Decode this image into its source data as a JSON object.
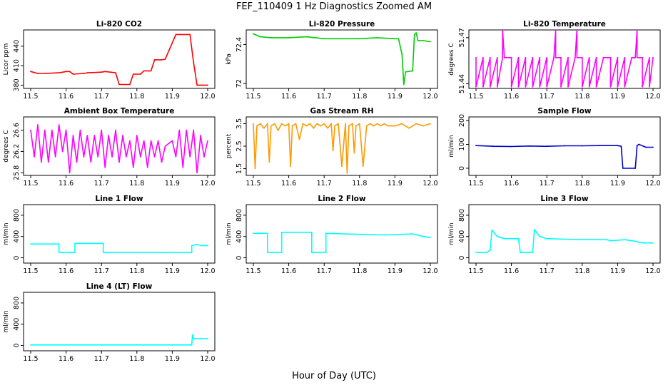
{
  "figure": {
    "title": "FEF_110409  1 Hz Diagnostics Zoomed AM",
    "xlabel": "Hour of Day (UTC)"
  },
  "chart_data": [
    {
      "type": "line",
      "title": "Li-820 CO2",
      "ylabel": "Licor ppm",
      "color": "#ff0000",
      "xlim": [
        11.5,
        12.0
      ],
      "ylim": [
        375,
        465
      ],
      "xticks": [
        "11.5",
        "11.6",
        "11.7",
        "11.8",
        "11.9",
        "12.0"
      ],
      "yticks": [
        380,
        410,
        440
      ],
      "series": [
        {
          "x": [
            11.5,
            11.52,
            11.54,
            11.58,
            11.6,
            11.61,
            11.62,
            11.65,
            11.66,
            11.7,
            11.71,
            11.74,
            11.75,
            11.78,
            11.79,
            11.81,
            11.82,
            11.84,
            11.85,
            11.87,
            11.88,
            11.91,
            11.92,
            11.95,
            11.96,
            11.97,
            11.98,
            12.0
          ],
          "y": [
            401,
            398,
            398,
            399,
            401,
            401,
            397,
            398,
            399,
            400,
            401,
            399,
            381,
            381,
            397,
            397,
            402,
            402,
            419,
            419,
            420,
            458,
            458,
            458,
            415,
            380,
            380,
            380
          ]
        }
      ]
    },
    {
      "type": "line",
      "title": "Li-820 Pressure",
      "ylabel": "kPa",
      "color": "#00cc00",
      "xlim": [
        11.5,
        12.0
      ],
      "ylim": [
        71.95,
        72.55
      ],
      "xticks": [
        "11.5",
        "11.6",
        "11.7",
        "11.8",
        "11.9",
        "12.0"
      ],
      "yticks": [
        72.0,
        72.4
      ],
      "series": [
        {
          "x": [
            11.5,
            11.52,
            11.55,
            11.6,
            11.65,
            11.7,
            11.75,
            11.8,
            11.85,
            11.9,
            11.91,
            11.92,
            11.925,
            11.93,
            11.95,
            11.955,
            11.96,
            11.965,
            11.97,
            11.98,
            12.0
          ],
          "y": [
            72.51,
            72.48,
            72.47,
            72.47,
            72.48,
            72.46,
            72.46,
            72.46,
            72.47,
            72.46,
            72.46,
            72.3,
            71.99,
            72.12,
            72.13,
            72.5,
            72.52,
            72.44,
            72.44,
            72.44,
            72.43
          ]
        }
      ]
    },
    {
      "type": "line",
      "title": "Li-820 Temperature",
      "ylabel": "degrees C",
      "color": "#ff00ff",
      "xlim": [
        11.5,
        12.0
      ],
      "ylim": [
        51.437,
        51.475
      ],
      "xticks": [
        "11.5",
        "11.6",
        "11.7",
        "11.8",
        "11.9",
        "12.0"
      ],
      "yticks": [
        51.44,
        51.47
      ],
      "series": [
        {
          "x": [
            11.5,
            11.5,
            11.52,
            11.52,
            11.54,
            11.54,
            11.56,
            11.56,
            11.575,
            11.575,
            11.58,
            11.6,
            11.6,
            11.62,
            11.62,
            11.64,
            11.64,
            11.66,
            11.66,
            11.68,
            11.68,
            11.7,
            11.7,
            11.72,
            11.725,
            11.725,
            11.74,
            11.74,
            11.76,
            11.76,
            11.78,
            11.785,
            11.785,
            11.8,
            11.8,
            11.82,
            11.82,
            11.84,
            11.84,
            11.86,
            11.86,
            11.88,
            11.88,
            11.9,
            11.9,
            11.92,
            11.92,
            11.94,
            11.95,
            11.955,
            11.955,
            11.97,
            11.97,
            11.99,
            11.99,
            12.0
          ],
          "y": [
            51.457,
            51.438,
            51.457,
            51.438,
            51.457,
            51.438,
            51.457,
            51.438,
            51.457,
            51.475,
            51.457,
            51.457,
            51.438,
            51.457,
            51.438,
            51.457,
            51.438,
            51.457,
            51.438,
            51.457,
            51.438,
            51.457,
            51.438,
            51.457,
            51.475,
            51.457,
            51.457,
            51.438,
            51.457,
            51.438,
            51.457,
            51.475,
            51.457,
            51.457,
            51.438,
            51.457,
            51.438,
            51.457,
            51.438,
            51.457,
            51.457,
            51.457,
            51.438,
            51.457,
            51.438,
            51.457,
            51.438,
            51.457,
            51.457,
            51.475,
            51.457,
            51.457,
            51.438,
            51.457,
            51.438,
            51.457
          ]
        }
      ]
    },
    {
      "type": "line",
      "title": "Ambient Box Temperature",
      "ylabel": "degrees C",
      "color": "#ff00ff",
      "xlim": [
        11.5,
        12.0
      ],
      "ylim": [
        25.75,
        26.85
      ],
      "xticks": [
        "11.5",
        "11.6",
        "11.7",
        "11.8",
        "11.9",
        "12.0"
      ],
      "yticks": [
        25.8,
        26.2,
        26.6
      ],
      "series": [
        {
          "x": [
            11.5,
            11.51,
            11.52,
            11.53,
            11.54,
            11.55,
            11.56,
            11.57,
            11.58,
            11.59,
            11.6,
            11.61,
            11.62,
            11.63,
            11.64,
            11.65,
            11.66,
            11.67,
            11.68,
            11.69,
            11.7,
            11.71,
            11.72,
            11.73,
            11.74,
            11.75,
            11.76,
            11.77,
            11.78,
            11.79,
            11.8,
            11.81,
            11.82,
            11.83,
            11.84,
            11.85,
            11.86,
            11.87,
            11.88,
            11.9,
            11.91,
            11.92,
            11.93,
            11.94,
            11.95,
            11.96,
            11.97,
            11.98,
            11.99,
            12.0
          ],
          "y": [
            26.6,
            26.1,
            26.7,
            26.0,
            26.6,
            26.0,
            26.6,
            26.1,
            26.7,
            26.2,
            26.6,
            25.8,
            26.5,
            26.0,
            26.6,
            26.1,
            26.5,
            26.0,
            26.5,
            26.1,
            26.6,
            25.9,
            26.5,
            26.1,
            26.6,
            26.0,
            26.5,
            26.1,
            26.4,
            25.9,
            26.5,
            26.1,
            26.4,
            25.9,
            26.4,
            26.1,
            26.4,
            26.0,
            26.3,
            26.4,
            26.1,
            26.6,
            25.9,
            26.6,
            26.1,
            26.6,
            25.8,
            26.5,
            26.1,
            26.4
          ]
        }
      ]
    },
    {
      "type": "line",
      "title": "Gas Stream RH",
      "ylabel": "percent",
      "color": "#ff9900",
      "xlim": [
        11.5,
        12.0
      ],
      "ylim": [
        1.2,
        3.8
      ],
      "xticks": [
        "11.5",
        "11.6",
        "11.7",
        "11.8",
        "11.9",
        "12.0"
      ],
      "yticks": [
        1.5,
        2.5,
        3.5
      ],
      "series": [
        {
          "x": [
            11.5,
            11.505,
            11.51,
            11.52,
            11.53,
            11.54,
            11.545,
            11.55,
            11.56,
            11.57,
            11.58,
            11.59,
            11.6,
            11.605,
            11.61,
            11.62,
            11.63,
            11.64,
            11.65,
            11.66,
            11.67,
            11.68,
            11.69,
            11.7,
            11.71,
            11.72,
            11.725,
            11.73,
            11.74,
            11.75,
            11.76,
            11.765,
            11.77,
            11.78,
            11.785,
            11.79,
            11.8,
            11.81,
            11.82,
            11.83,
            11.84,
            11.85,
            11.86,
            11.87,
            11.88,
            11.9,
            11.92,
            11.94,
            11.96,
            11.98,
            12.0
          ],
          "y": [
            3.5,
            1.5,
            3.4,
            3.5,
            3.3,
            3.5,
            1.8,
            3.4,
            3.5,
            3.2,
            3.5,
            3.4,
            3.5,
            1.6,
            3.4,
            3.5,
            2.8,
            3.5,
            3.4,
            3.5,
            3.3,
            3.5,
            3.4,
            3.5,
            3.3,
            3.5,
            2.3,
            3.4,
            3.5,
            1.6,
            3.5,
            1.3,
            3.4,
            3.5,
            2.2,
            3.4,
            3.5,
            1.6,
            3.4,
            3.5,
            3.4,
            3.5,
            3.4,
            3.5,
            3.4,
            3.4,
            3.5,
            3.3,
            3.5,
            3.4,
            3.5
          ]
        }
      ]
    },
    {
      "type": "line",
      "title": "Sample Flow",
      "ylabel": "ml/min",
      "color": "#0000cc",
      "xlim": [
        11.5,
        12.0
      ],
      "ylim": [
        -30,
        215
      ],
      "xticks": [
        "11.5",
        "11.6",
        "11.7",
        "11.8",
        "11.9",
        "12.0"
      ],
      "yticks": [
        0,
        100,
        200
      ],
      "series": [
        {
          "x": [
            11.5,
            11.55,
            11.6,
            11.65,
            11.7,
            11.75,
            11.8,
            11.85,
            11.9,
            11.91,
            11.915,
            11.95,
            11.955,
            11.96,
            11.98,
            12.0
          ],
          "y": [
            95,
            92,
            91,
            93,
            92,
            94,
            94,
            95,
            95,
            92,
            0,
            0,
            95,
            100,
            88,
            88
          ]
        }
      ]
    },
    {
      "type": "line",
      "title": "Line 1 Flow",
      "ylabel": "ml/min",
      "color": "#00ffff",
      "xlim": [
        11.5,
        12.0
      ],
      "ylim": [
        -100,
        1000
      ],
      "xticks": [
        "11.5",
        "11.6",
        "11.7",
        "11.8",
        "11.9",
        "12.0"
      ],
      "yticks": [
        0,
        400,
        800
      ],
      "series": [
        {
          "x": [
            11.5,
            11.58,
            11.58,
            11.625,
            11.625,
            11.705,
            11.705,
            11.8,
            11.9,
            11.955,
            11.955,
            11.97,
            11.98,
            12.0
          ],
          "y": [
            260,
            260,
            100,
            100,
            270,
            270,
            100,
            100,
            100,
            100,
            230,
            250,
            230,
            230
          ]
        }
      ]
    },
    {
      "type": "line",
      "title": "Line 2 Flow",
      "ylabel": "ml/min",
      "color": "#00ffff",
      "xlim": [
        11.5,
        12.0
      ],
      "ylim": [
        -100,
        1000
      ],
      "xticks": [
        "11.5",
        "11.6",
        "11.7",
        "11.8",
        "11.9",
        "12.0"
      ],
      "yticks": [
        0,
        400,
        800
      ],
      "series": [
        {
          "x": [
            11.5,
            11.54,
            11.54,
            11.58,
            11.58,
            11.665,
            11.665,
            11.705,
            11.705,
            11.8,
            11.87,
            11.87,
            11.92,
            11.95,
            11.98,
            12.0
          ],
          "y": [
            460,
            460,
            100,
            100,
            480,
            480,
            100,
            100,
            460,
            440,
            430,
            430,
            440,
            450,
            400,
            380
          ]
        }
      ]
    },
    {
      "type": "line",
      "title": "Line 3 Flow",
      "ylabel": "ml/min",
      "color": "#00ffff",
      "xlim": [
        11.5,
        12.0
      ],
      "ylim": [
        -100,
        1000
      ],
      "xticks": [
        "11.5",
        "11.6",
        "11.7",
        "11.8",
        "11.9",
        "12.0"
      ],
      "yticks": [
        0,
        400,
        800
      ],
      "series": [
        {
          "x": [
            11.5,
            11.53,
            11.54,
            11.545,
            11.56,
            11.58,
            11.62,
            11.625,
            11.66,
            11.665,
            11.68,
            11.7,
            11.75,
            11.8,
            11.87,
            11.88,
            11.92,
            11.95,
            11.97,
            12.0
          ],
          "y": [
            100,
            100,
            140,
            520,
            400,
            360,
            360,
            100,
            100,
            530,
            400,
            360,
            350,
            340,
            340,
            320,
            340,
            310,
            280,
            280
          ]
        }
      ]
    },
    {
      "type": "line",
      "title": "Line 4 (LT) Flow",
      "ylabel": "ml/min",
      "color": "#00ffff",
      "xlim": [
        11.5,
        12.0
      ],
      "ylim": [
        -100,
        1000
      ],
      "xticks": [
        "11.5",
        "11.6",
        "11.7",
        "11.8",
        "11.9",
        "12.0"
      ],
      "yticks": [
        0,
        400,
        800
      ],
      "series": [
        {
          "x": [
            11.5,
            11.6,
            11.7,
            11.8,
            11.9,
            11.955,
            11.957,
            11.96,
            11.98,
            12.0
          ],
          "y": [
            10,
            10,
            10,
            10,
            10,
            10,
            200,
            130,
            130,
            130
          ]
        }
      ]
    }
  ]
}
